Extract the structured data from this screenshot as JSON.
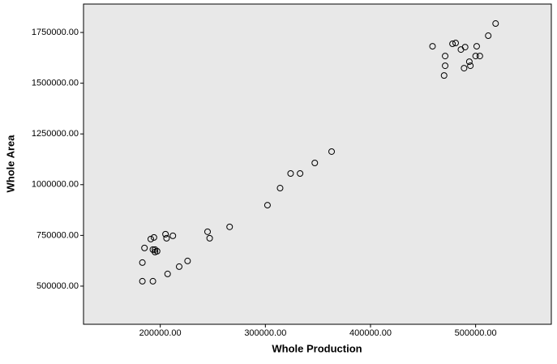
{
  "chart_data": {
    "type": "scatter",
    "x_label": "Whole Production",
    "y_label": "Whole Area",
    "xlim": [
      127000,
      572000
    ],
    "ylim": [
      312000,
      1890000
    ],
    "xticks": [
      {
        "value": 200000,
        "label": "200000.00"
      },
      {
        "value": 300000,
        "label": "300000.00"
      },
      {
        "value": 400000,
        "label": "400000.00"
      },
      {
        "value": 500000,
        "label": "500000.00"
      }
    ],
    "yticks": [
      {
        "value": 500000,
        "label": "500000.00"
      },
      {
        "value": 750000,
        "label": "750000.00"
      },
      {
        "value": 1000000,
        "label": "1000000.00"
      },
      {
        "value": 1250000,
        "label": "1250000.00"
      },
      {
        "value": 1500000,
        "label": "1500000.00"
      },
      {
        "value": 1750000,
        "label": "1750000.00"
      }
    ],
    "color": "#000000",
    "background": "#e8e8e8",
    "x": [
      183000,
      193000,
      183000,
      185000,
      191000,
      194000,
      193000,
      195000,
      195000,
      197000,
      205000,
      206000,
      212000,
      207000,
      218000,
      226000,
      245000,
      247000,
      266000,
      302000,
      314000,
      324000,
      333000,
      347000,
      363000,
      459000,
      471000,
      471000,
      470000,
      478000,
      481000,
      486000,
      490000,
      489000,
      494000,
      495000,
      500000,
      501000,
      504000,
      512000,
      519000
    ],
    "y": [
      524000,
      524000,
      616000,
      688000,
      732000,
      740000,
      680000,
      680000,
      668000,
      672000,
      756000,
      736000,
      748000,
      560000,
      596000,
      624000,
      768000,
      736000,
      792000,
      899000,
      983000,
      1055000,
      1055000,
      1107000,
      1163000,
      1682000,
      1634000,
      1586000,
      1538000,
      1694000,
      1698000,
      1666000,
      1678000,
      1574000,
      1606000,
      1586000,
      1634000,
      1682000,
      1634000,
      1734000,
      1794000
    ]
  }
}
